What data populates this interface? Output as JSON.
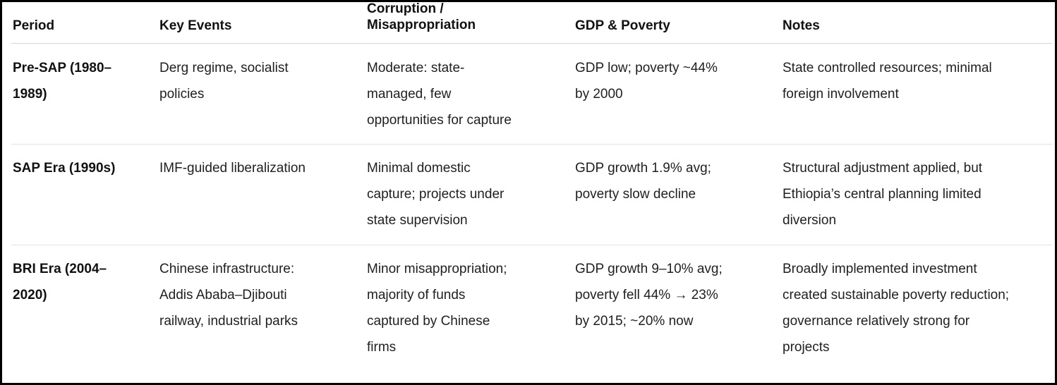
{
  "table": {
    "headers": [
      "Period",
      "Key Events",
      "Corruption /\nMisappropriation",
      "GDP & Poverty",
      "Notes"
    ],
    "rows": [
      {
        "period": [
          "Pre-SAP (1980–",
          "1989)"
        ],
        "key_events": [
          "Derg regime, socialist",
          "policies"
        ],
        "corruption": [
          "Moderate: state-",
          "managed, few",
          "opportunities for capture"
        ],
        "gdp_poverty": [
          "GDP low; poverty ~44%",
          "by 2000"
        ],
        "notes": [
          "State controlled resources; minimal",
          "foreign involvement"
        ]
      },
      {
        "period": [
          "SAP Era (1990s)"
        ],
        "key_events": [
          "IMF-guided liberalization"
        ],
        "corruption": [
          "Minimal domestic",
          "capture; projects under",
          "state supervision"
        ],
        "gdp_poverty": [
          "GDP growth 1.9% avg;",
          "poverty slow decline"
        ],
        "notes": [
          "Structural adjustment applied, but",
          "Ethiopia’s central planning limited",
          "diversion"
        ]
      },
      {
        "period": [
          "BRI Era (2004–",
          "2020)"
        ],
        "key_events": [
          "Chinese infrastructure:",
          "Addis Ababa–Djibouti",
          "railway, industrial parks"
        ],
        "corruption": [
          "Minor misappropriation;",
          "majority of funds",
          "captured by Chinese",
          "firms"
        ],
        "gdp_poverty": [
          "GDP growth 9–10% avg;",
          "poverty fell 44% → 23%",
          "by 2015; ~20% now"
        ],
        "notes": [
          "Broadly implemented investment",
          "created sustainable poverty reduction;",
          "governance relatively strong for",
          "projects"
        ]
      }
    ]
  }
}
